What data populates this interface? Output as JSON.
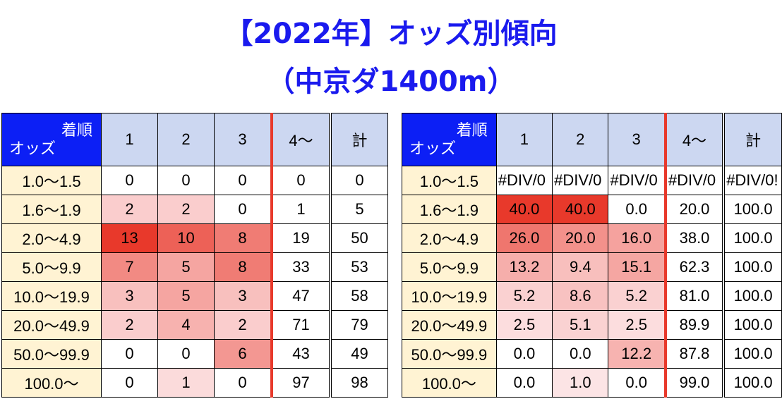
{
  "title": {
    "line1": "【2022年】オッズ別傾向",
    "line2": "（中京ダ1400m）"
  },
  "header": {
    "corner_top": "着順",
    "corner_bottom": "オッズ",
    "cols": [
      "1",
      "2",
      "3",
      "4〜",
      "計"
    ]
  },
  "rows": [
    "1.0〜1.5",
    "1.6〜1.9",
    "2.0〜4.9",
    "5.0〜9.9",
    "10.0〜19.9",
    "20.0〜49.9",
    "50.0〜99.9",
    "100.0〜"
  ],
  "counts": [
    [
      "0",
      "0",
      "0",
      "0",
      "0"
    ],
    [
      "2",
      "2",
      "0",
      "1",
      "5"
    ],
    [
      "13",
      "10",
      "8",
      "19",
      "50"
    ],
    [
      "7",
      "5",
      "8",
      "33",
      "53"
    ],
    [
      "3",
      "5",
      "3",
      "47",
      "58"
    ],
    [
      "2",
      "4",
      "2",
      "71",
      "79"
    ],
    [
      "0",
      "0",
      "6",
      "43",
      "49"
    ],
    [
      "0",
      "1",
      "0",
      "97",
      "98"
    ]
  ],
  "rates": [
    [
      "#DIV/0",
      "#DIV/0",
      "#DIV/0",
      "#DIV/0",
      "#DIV/0!"
    ],
    [
      "40.0",
      "40.0",
      "0.0",
      "20.0",
      "100.0"
    ],
    [
      "26.0",
      "20.0",
      "16.0",
      "38.0",
      "100.0"
    ],
    [
      "13.2",
      "9.4",
      "15.1",
      "62.3",
      "100.0"
    ],
    [
      "5.2",
      "8.6",
      "5.2",
      "81.0",
      "100.0"
    ],
    [
      "2.5",
      "5.1",
      "2.5",
      "89.9",
      "100.0"
    ],
    [
      "0.0",
      "0.0",
      "12.2",
      "87.8",
      "100.0"
    ],
    [
      "0.0",
      "1.0",
      "0.0",
      "99.0",
      "100.0"
    ]
  ],
  "colors": {
    "title": "#1a1aee",
    "corner": "#0c1ff5",
    "header": "#ccd7f1",
    "row_label": "#fff3d3",
    "separator": "#e8392b",
    "heat_low": "#fdeeee",
    "heat_high": "#e8392b"
  }
}
